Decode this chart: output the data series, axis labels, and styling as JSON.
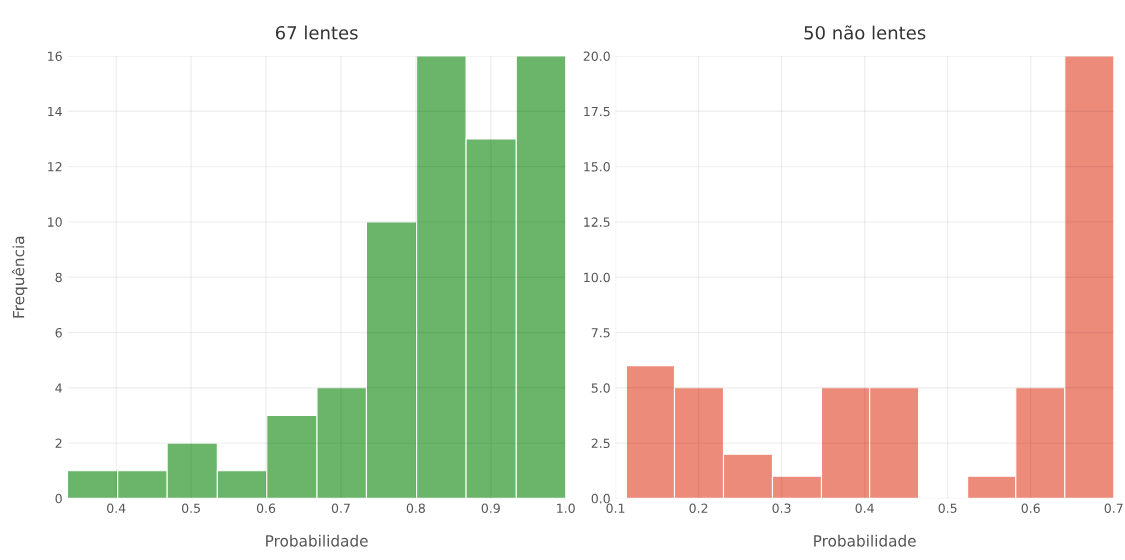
{
  "chart_data": [
    {
      "type": "histogram",
      "title": "67 lentes",
      "xlabel": "Probabilidade",
      "ylabel": "Frequência",
      "color": "#5aad5a",
      "bins": [
        0.335,
        0.402,
        0.468,
        0.535,
        0.601,
        0.668,
        0.734,
        0.801,
        0.867,
        0.934,
        1.0
      ],
      "values": [
        1,
        1,
        2,
        1,
        3,
        4,
        10,
        16,
        13,
        16
      ],
      "xlim": [
        0.335,
        1.0
      ],
      "xticks": [
        0.4,
        0.5,
        0.6,
        0.7,
        0.8,
        0.9,
        {
          "value": 1.0,
          "label": "1.0"
        }
      ],
      "ylim": [
        0,
        16
      ],
      "yticks": [
        0,
        2,
        4,
        6,
        8,
        10,
        12,
        14,
        16
      ],
      "grid": true,
      "legend": false
    },
    {
      "type": "histogram",
      "title": "50 não lentes",
      "xlabel": "Probabilidade",
      "color": "#ec7f6d",
      "bins": [
        0.113,
        0.171,
        0.23,
        0.289,
        0.348,
        0.406,
        0.465,
        0.524,
        0.582,
        0.641,
        0.7
      ],
      "values": [
        6,
        5,
        2,
        1,
        5,
        5,
        0,
        1,
        5,
        20
      ],
      "xlim": [
        0.1,
        0.7
      ],
      "xticks": [
        0.1,
        0.2,
        0.3,
        0.4,
        0.5,
        0.6,
        0.7
      ],
      "ylim": [
        0,
        20
      ],
      "yticks": [
        {
          "value": 0,
          "label": "0.0"
        },
        {
          "value": 2.5,
          "label": "2.5"
        },
        {
          "value": 5,
          "label": "5.0"
        },
        {
          "value": 7.5,
          "label": "7.5"
        },
        {
          "value": 10,
          "label": "10.0"
        },
        {
          "value": 12.5,
          "label": "12.5"
        },
        {
          "value": 15,
          "label": "15.0"
        },
        {
          "value": 17.5,
          "label": "17.5"
        },
        {
          "value": 20,
          "label": "20.0"
        }
      ],
      "grid": true,
      "legend": false
    }
  ]
}
